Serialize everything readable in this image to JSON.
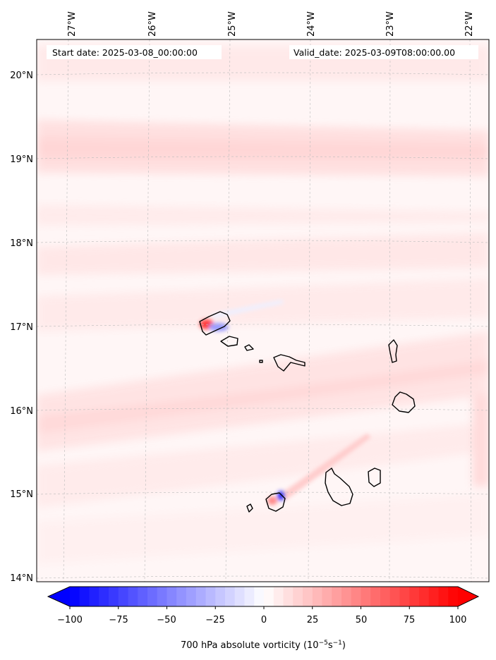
{
  "map": {
    "start_date": "Start date: 2025-03-08_00:00:00",
    "valid_date": "Valid_date: 2025-03-09T08:00:00.00",
    "lon_ticks": [
      "27°W",
      "26°W",
      "25°W",
      "24°W",
      "23°W",
      "22°W"
    ],
    "lat_ticks": [
      "20°N",
      "19°N",
      "18°N",
      "17°N",
      "16°N",
      "15°N",
      "14°N"
    ],
    "islands": [
      "Santo Antão",
      "São Vicente",
      "Santa Luzia",
      "São Nicolau",
      "Sal",
      "Boa Vista",
      "Maio",
      "Santiago",
      "Fogo",
      "Brava"
    ]
  },
  "colorbar": {
    "ticks": [
      "−100",
      "−75",
      "−50",
      "−25",
      "0",
      "25",
      "50",
      "75",
      "100"
    ],
    "range": [
      -100,
      100
    ],
    "low_color": "#0000ff",
    "mid_color": "#ffffff",
    "high_color": "#ff0000",
    "label_main": "700 hPa absolute vorticity (10",
    "label_exp1": "−5",
    "label_mid": "s",
    "label_exp2": "−1",
    "label_end": ")"
  }
}
